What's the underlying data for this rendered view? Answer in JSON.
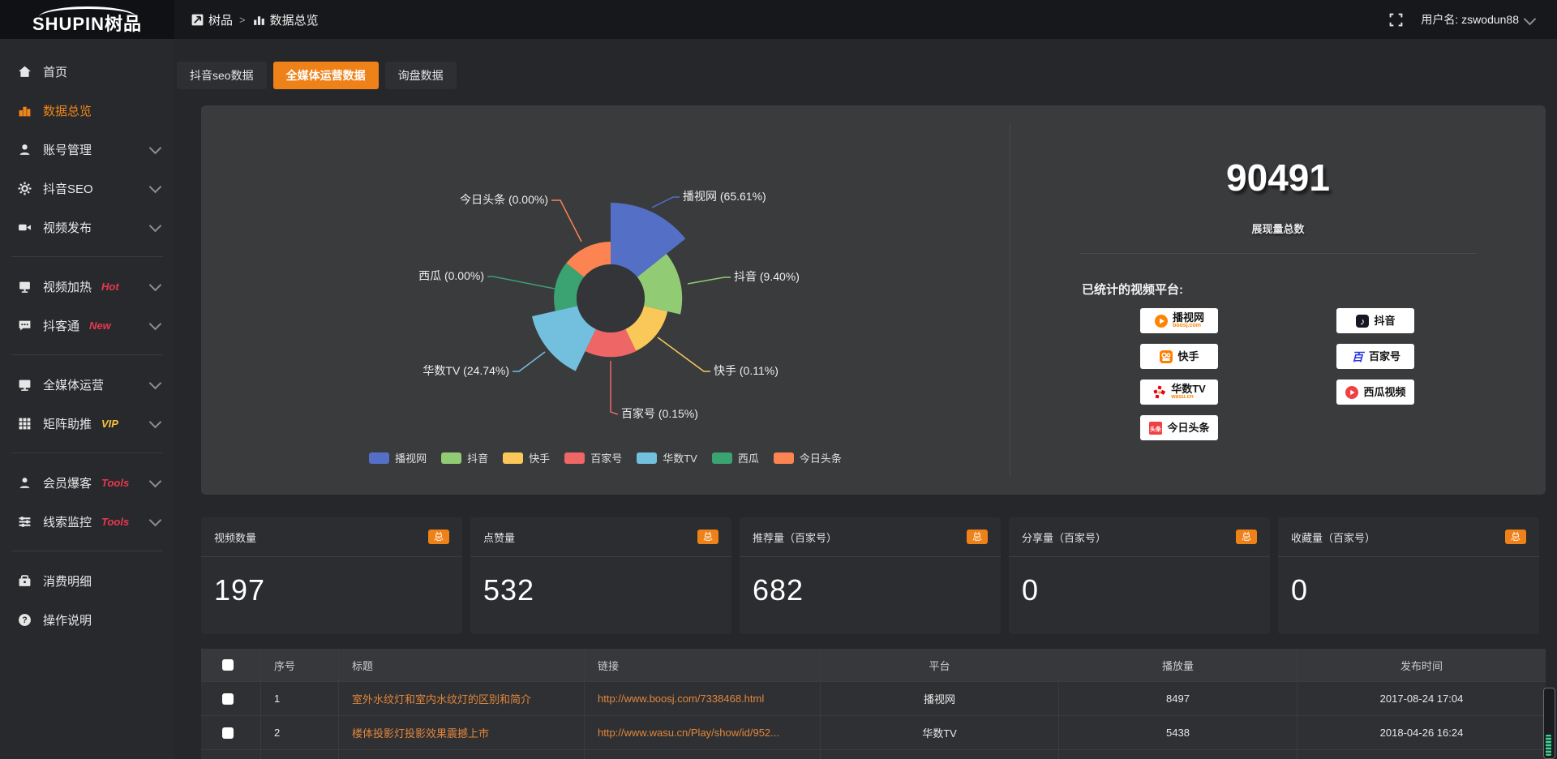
{
  "topbar": {
    "logo_text": "SHUPIN树品",
    "breadcrumb": {
      "root": "树品",
      "separator": ">",
      "current": "数据总览"
    },
    "username": "用户名: zswodun88"
  },
  "sidebar": {
    "items": [
      {
        "label": "首页",
        "icon": "home-icon"
      },
      {
        "label": "数据总览",
        "icon": "bar-chart-icon",
        "active": true
      },
      {
        "label": "账号管理",
        "icon": "user-icon",
        "expandable": true
      },
      {
        "label": "抖音SEO",
        "icon": "gear-icon",
        "expandable": true
      },
      {
        "label": "视频发布",
        "icon": "video-camera-icon",
        "expandable": true
      },
      {
        "divider": true
      },
      {
        "label": "视频加热",
        "icon": "screen-icon",
        "badge": "Hot",
        "badge_color": "#e8384f",
        "expandable": true
      },
      {
        "label": "抖客通",
        "icon": "chat-icon",
        "badge": "New",
        "badge_color": "#e8384f",
        "expandable": true
      },
      {
        "divider": true
      },
      {
        "label": "全媒体运营",
        "icon": "monitor-icon",
        "expandable": true
      },
      {
        "label": "矩阵助推",
        "icon": "grid-icon",
        "badge": "VIP",
        "badge_color": "#f3c440",
        "expandable": true
      },
      {
        "divider": true
      },
      {
        "label": "会员爆客",
        "icon": "member-icon",
        "badge": "Tools",
        "badge_color": "#e8384f",
        "expandable": true
      },
      {
        "label": "线索监控",
        "icon": "sliders-icon",
        "badge": "Tools",
        "badge_color": "#e8384f",
        "expandable": true
      },
      {
        "divider": true
      },
      {
        "label": "消费明细",
        "icon": "wallet-icon"
      },
      {
        "label": "操作说明",
        "icon": "question-icon"
      }
    ]
  },
  "tabs": [
    {
      "label": "抖音seo数据",
      "active": false
    },
    {
      "label": "全媒体运营数据",
      "active": true
    },
    {
      "label": "询盘数据",
      "active": false
    }
  ],
  "chart_data": {
    "type": "pie",
    "subtype": "nightingale-rose-donut",
    "label_format": "{name} ({pct}%)",
    "legend_position": "bottom",
    "series": [
      {
        "name": "播视网",
        "value": 65.61,
        "pct_label": "65.61",
        "color": "#5470c6"
      },
      {
        "name": "抖音",
        "value": 9.4,
        "pct_label": "9.40",
        "color": "#91cc75"
      },
      {
        "name": "快手",
        "value": 0.11,
        "pct_label": "0.11",
        "color": "#fac858"
      },
      {
        "name": "百家号",
        "value": 0.15,
        "pct_label": "0.15",
        "color": "#ee6666"
      },
      {
        "name": "华数TV",
        "value": 24.74,
        "pct_label": "24.74",
        "color": "#73c0de"
      },
      {
        "name": "西瓜",
        "value": 0.0,
        "pct_label": "0.00",
        "color": "#3ba272"
      },
      {
        "name": "今日头条",
        "value": 0.0,
        "pct_label": "0.00",
        "color": "#fc8452"
      }
    ]
  },
  "summary": {
    "total": "90491",
    "caption": "展现量总数",
    "platforms_title": "已统计的视频平台:",
    "platform_columns": [
      [
        "播视网",
        "快手",
        "华数TV",
        "今日头条"
      ],
      [
        "抖音",
        "百家号",
        "西瓜视频"
      ]
    ],
    "platform_subs": {
      "播视网": "boosj.com",
      "华数TV": "wasu.cn"
    }
  },
  "stat_cards": [
    {
      "title": "视频数量",
      "badge": "总",
      "value": "197"
    },
    {
      "title": "点赞量",
      "badge": "总",
      "value": "532"
    },
    {
      "title": "推荐量（百家号）",
      "badge": "总",
      "value": "682"
    },
    {
      "title": "分享量（百家号）",
      "badge": "总",
      "value": "0"
    },
    {
      "title": "收藏量（百家号）",
      "badge": "总",
      "value": "0"
    }
  ],
  "table": {
    "headers": [
      "序号",
      "标题",
      "链接",
      "平台",
      "播放量",
      "发布时间"
    ],
    "rows": [
      {
        "index": "1",
        "title": "室外水纹灯和室内水纹灯的区别和简介",
        "link": "http://www.boosj.com/7338468.html",
        "platform": "播视网",
        "plays": "8497",
        "published": "2017-08-24 17:04"
      },
      {
        "index": "2",
        "title": "楼体投影灯投影效果震撼上市",
        "link": "http://www.wasu.cn/Play/show/id/952...",
        "platform": "华数TV",
        "plays": "5438",
        "published": "2018-04-26 16:24"
      }
    ]
  },
  "colors": {
    "accent": "#ee8118",
    "hot_badge": "#e8384f",
    "vip_badge": "#f3c440",
    "link": "#e2863b"
  }
}
